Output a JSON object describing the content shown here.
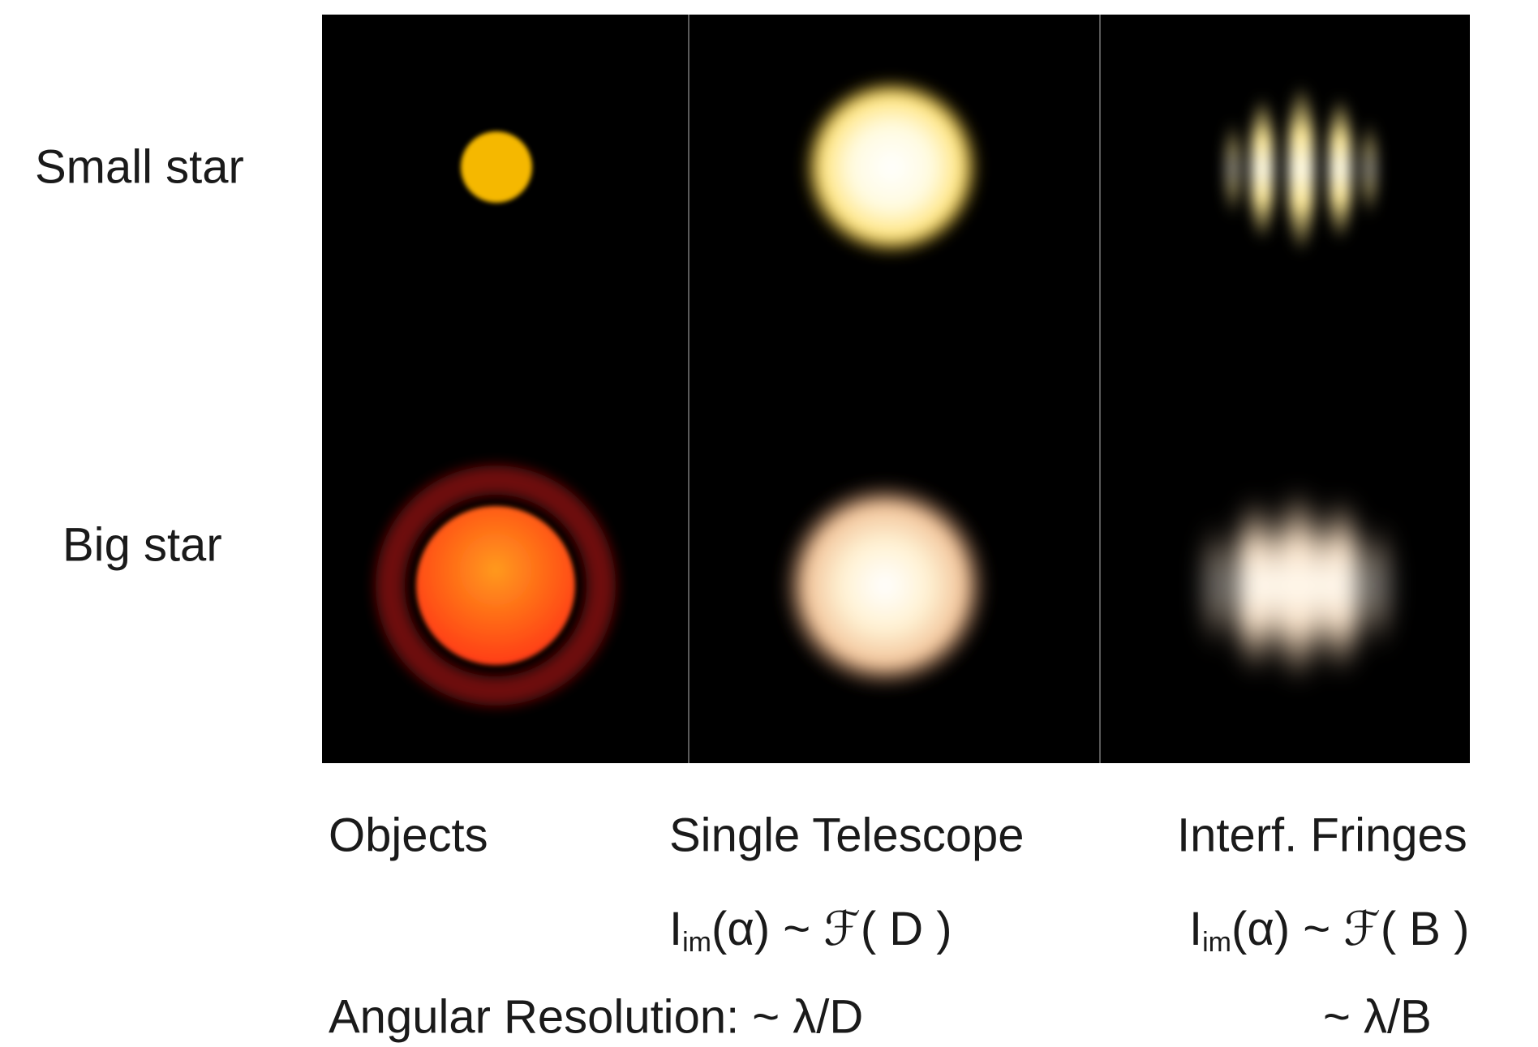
{
  "rows": [
    {
      "label": "Small star"
    },
    {
      "label": "Big star"
    }
  ],
  "columns": [
    {
      "label": "Objects"
    },
    {
      "label": "Single Telescope",
      "formula": {
        "main": "I",
        "sub": "im",
        "rest": "(α) ~ ℱ( D )"
      }
    },
    {
      "label": "Interf. Fringes",
      "formula": {
        "main": "I",
        "sub": "im",
        "rest": "(α) ~ ℱ( B )"
      }
    }
  ],
  "resolution": {
    "label": "Angular Resolution: ~ λ/D",
    "fringes": "~ λ/B"
  }
}
